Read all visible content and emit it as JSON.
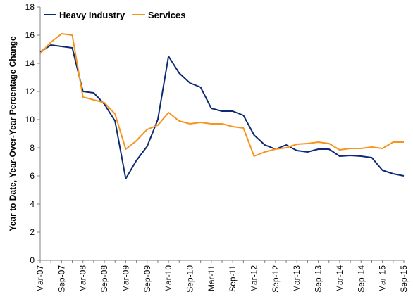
{
  "chart_data": {
    "type": "line",
    "title": "",
    "xlabel": "",
    "ylabel": "Year to Date, Year-Over-Year Percentage Change",
    "ylim": [
      0,
      18
    ],
    "y_ticks": [
      0,
      2,
      4,
      6,
      8,
      10,
      12,
      14,
      16,
      18
    ],
    "x_tick_labels": [
      "Mar-07",
      "Sep-07",
      "Mar-08",
      "Sep-08",
      "Mar-09",
      "Sep-09",
      "Mar-10",
      "Sep-10",
      "Mar-11",
      "Sep-11",
      "Mar-12",
      "Sep-12",
      "Mar-13",
      "Sep-13",
      "Mar-14",
      "Sep-14",
      "Mar-15",
      "Sep-15"
    ],
    "x": [
      "Mar-07",
      "Jun-07",
      "Sep-07",
      "Dec-07",
      "Mar-08",
      "Jun-08",
      "Sep-08",
      "Dec-08",
      "Mar-09",
      "Jun-09",
      "Sep-09",
      "Dec-09",
      "Mar-10",
      "Jun-10",
      "Sep-10",
      "Dec-10",
      "Mar-11",
      "Jun-11",
      "Sep-11",
      "Dec-11",
      "Mar-12",
      "Jun-12",
      "Sep-12",
      "Dec-12",
      "Mar-13",
      "Jun-13",
      "Sep-13",
      "Dec-13",
      "Mar-14",
      "Jun-14",
      "Sep-14",
      "Dec-14",
      "Mar-15",
      "Jun-15",
      "Sep-15"
    ],
    "grid": false,
    "legend_position": "top-left",
    "series": [
      {
        "name": "Heavy Industry",
        "color": "#0d2a73",
        "values": [
          14.8,
          15.3,
          15.2,
          15.1,
          12.0,
          11.9,
          11.1,
          9.9,
          5.8,
          7.1,
          8.1,
          10.0,
          14.5,
          13.3,
          12.6,
          12.3,
          10.8,
          10.6,
          10.6,
          10.3,
          8.9,
          8.2,
          7.9,
          8.2,
          7.8,
          7.7,
          7.9,
          7.9,
          7.4,
          7.45,
          7.4,
          7.3,
          6.4,
          6.15,
          6.0
        ]
      },
      {
        "name": "Services",
        "color": "#f7941d",
        "values": [
          14.7,
          15.5,
          16.1,
          16.0,
          11.6,
          11.4,
          11.2,
          10.4,
          7.9,
          8.5,
          9.3,
          9.6,
          10.5,
          9.9,
          9.7,
          9.8,
          9.7,
          9.7,
          9.5,
          9.4,
          7.4,
          7.7,
          7.9,
          8.0,
          8.25,
          8.3,
          8.4,
          8.3,
          7.85,
          7.95,
          7.95,
          8.05,
          7.95,
          8.4,
          8.4
        ]
      }
    ]
  }
}
